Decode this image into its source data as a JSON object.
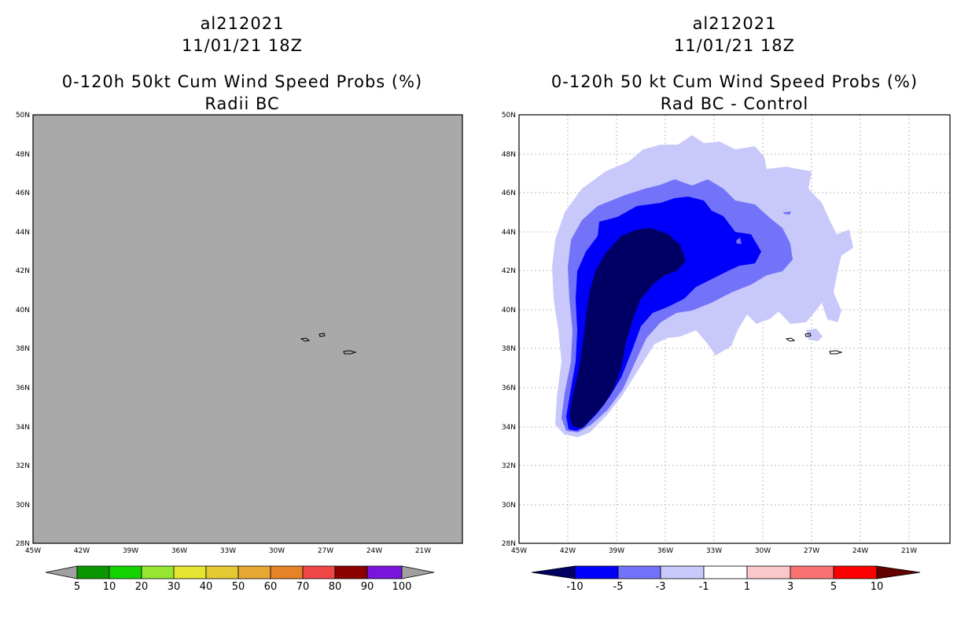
{
  "left_panel": {
    "storm_id": "al212021",
    "datetime": "11/01/21 18Z",
    "title": "0-120h 50kt Cum Wind Speed Probs (%)",
    "subtitle": "Radii BC",
    "lat_labels": [
      "50N",
      "48N",
      "46N",
      "44N",
      "42N",
      "40N",
      "38N",
      "36N",
      "34N",
      "32N",
      "30N",
      "28N"
    ],
    "lon_labels": [
      "45W",
      "42W",
      "39W",
      "36W",
      "33W",
      "30W",
      "27W",
      "24W",
      "21W"
    ],
    "colorbar": {
      "labels": [
        "5",
        "10",
        "20",
        "30",
        "40",
        "50",
        "60",
        "70",
        "80",
        "90",
        "100"
      ],
      "colors": [
        "#0a9600",
        "#14d200",
        "#96e632",
        "#e6e632",
        "#e6c832",
        "#e6a832",
        "#e68228",
        "#f04646",
        "#8c0000",
        "#7814dc"
      ],
      "end_color": "#a0a0a0"
    },
    "background_color": "#a9a9a9"
  },
  "right_panel": {
    "storm_id": "al212021",
    "datetime": "11/01/21 18Z",
    "title": "0-120h 50 kt Cum Wind Speed Probs (%)",
    "subtitle": "Rad BC - Control",
    "lat_labels": [
      "50N",
      "48N",
      "46N",
      "44N",
      "42N",
      "40N",
      "38N",
      "36N",
      "34N",
      "32N",
      "30N",
      "28N"
    ],
    "lon_labels": [
      "45W",
      "42W",
      "39W",
      "36W",
      "33W",
      "30W",
      "27W",
      "24W",
      "21W"
    ],
    "colorbar": {
      "labels": [
        "-10",
        "-5",
        "-3",
        "-1",
        "1",
        "3",
        "5",
        "10"
      ],
      "colors": [
        "#0000fa",
        "#7373fa",
        "#c8c8fa",
        "#ffffff",
        "#fac8c8",
        "#fa7373",
        "#fa0000"
      ],
      "low_end_color": "#000064",
      "high_end_color": "#640000"
    },
    "shading": {
      "lt_minus_10": "#000064",
      "minus_10_to_minus_5": "#0000fa",
      "minus_5_to_minus_3": "#7373fa",
      "minus_3_to_minus_1": "#c8c8fa"
    }
  }
}
